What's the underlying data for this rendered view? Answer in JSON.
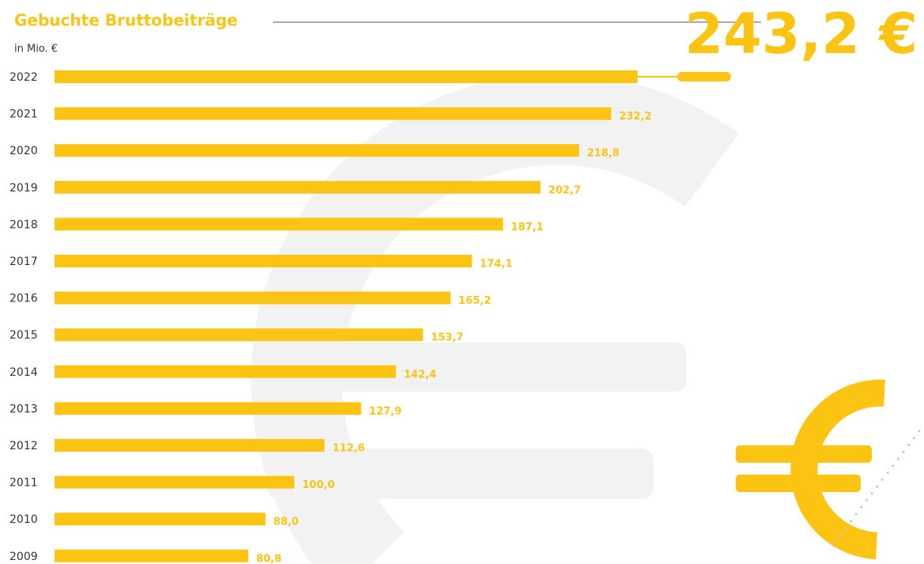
{
  "chart_data": {
    "type": "bar",
    "orientation": "horizontal",
    "title": "Gebuchte Bruttobeiträge",
    "subtitle": "in Mio. €",
    "categories": [
      "2022",
      "2021",
      "2020",
      "2019",
      "2018",
      "2017",
      "2016",
      "2015",
      "2014",
      "2013",
      "2012",
      "2011",
      "2010",
      "2009"
    ],
    "values": [
      243.2,
      232.2,
      218.8,
      202.7,
      187.1,
      174.1,
      165.2,
      153.7,
      142.4,
      127.9,
      112.6,
      100.0,
      88.0,
      80.8
    ],
    "value_labels": [
      "243,2 €",
      "232,2",
      "218,8",
      "202,7",
      "187,1",
      "174,1",
      "165,2",
      "153,7",
      "142,4",
      "127,9",
      "112,6",
      "100,0",
      "88,0",
      "80,8"
    ],
    "color": "#fcc412"
  }
}
